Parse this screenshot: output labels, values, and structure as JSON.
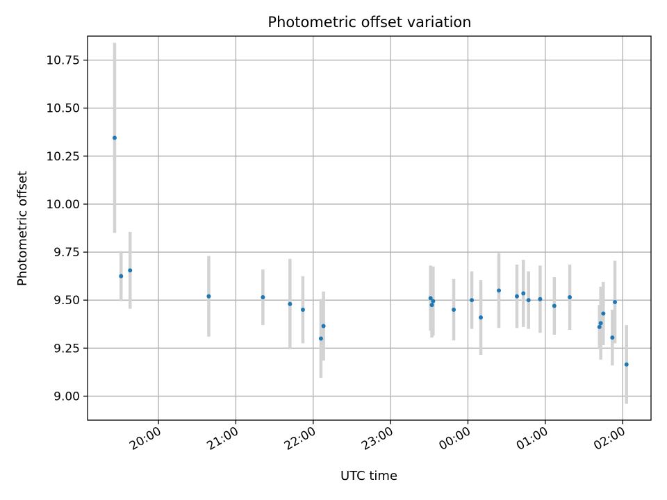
{
  "chart_data": {
    "type": "scatter",
    "title": "Photometric offset variation",
    "xlabel": "UTC time",
    "ylabel": "Photometric offset",
    "x_unit": "UTC time, session starting 19:00 and continuing past midnight",
    "xlim": [
      "19:05",
      "02:22"
    ],
    "ylim": [
      8.875,
      10.875
    ],
    "x_ticks": [
      "20:00",
      "21:00",
      "22:00",
      "23:00",
      "00:00",
      "01:00",
      "02:00"
    ],
    "y_ticks": [
      "9.00",
      "9.25",
      "9.50",
      "9.75",
      "10.00",
      "10.25",
      "10.50",
      "10.75"
    ],
    "grid": true,
    "colors": {
      "marker": "#1f77b4",
      "errorbar": "#d3d3d3",
      "grid": "#b0b0b0"
    },
    "points": [
      {
        "t": "19:26",
        "y": 10.345,
        "err": 0.495
      },
      {
        "t": "19:31",
        "y": 9.625,
        "err": 0.13
      },
      {
        "t": "19:38",
        "y": 9.655,
        "err": 0.2
      },
      {
        "t": "20:39",
        "y": 9.52,
        "err": 0.21
      },
      {
        "t": "21:21",
        "y": 9.515,
        "err": 0.145
      },
      {
        "t": "21:42",
        "y": 9.48,
        "err": 0.235
      },
      {
        "t": "21:52",
        "y": 9.45,
        "err": 0.175
      },
      {
        "t": "22:06",
        "y": 9.3,
        "err": 0.205
      },
      {
        "t": "22:08",
        "y": 9.365,
        "err": 0.18
      },
      {
        "t": "23:31",
        "y": 9.51,
        "err": 0.17
      },
      {
        "t": "23:32",
        "y": 9.475,
        "err": 0.17
      },
      {
        "t": "23:33",
        "y": 9.495,
        "err": 0.18
      },
      {
        "t": "23:49",
        "y": 9.45,
        "err": 0.16
      },
      {
        "t": "00:03",
        "y": 9.5,
        "err": 0.15
      },
      {
        "t": "00:10",
        "y": 9.41,
        "err": 0.195
      },
      {
        "t": "00:24",
        "y": 9.55,
        "err": 0.195
      },
      {
        "t": "00:38",
        "y": 9.52,
        "err": 0.165
      },
      {
        "t": "00:43",
        "y": 9.535,
        "err": 0.175
      },
      {
        "t": "00:47",
        "y": 9.5,
        "err": 0.15
      },
      {
        "t": "00:56",
        "y": 9.505,
        "err": 0.175
      },
      {
        "t": "01:07",
        "y": 9.47,
        "err": 0.15
      },
      {
        "t": "01:19",
        "y": 9.515,
        "err": 0.17
      },
      {
        "t": "01:42",
        "y": 9.36,
        "err": 0.115
      },
      {
        "t": "01:43",
        "y": 9.38,
        "err": 0.19
      },
      {
        "t": "01:45",
        "y": 9.43,
        "err": 0.165
      },
      {
        "t": "01:52",
        "y": 9.305,
        "err": 0.145
      },
      {
        "t": "01:54",
        "y": 9.49,
        "err": 0.215
      },
      {
        "t": "02:03",
        "y": 9.165,
        "err": 0.205
      }
    ]
  }
}
